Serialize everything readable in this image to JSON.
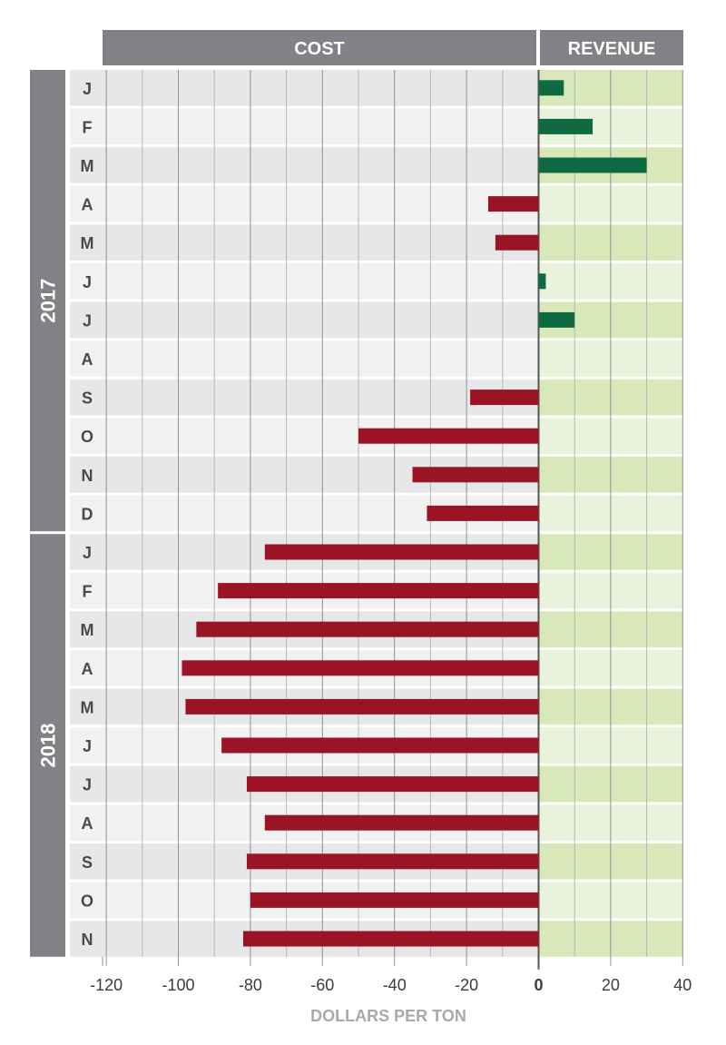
{
  "colors": {
    "header": "#808285",
    "cost_bar": "#9b1426",
    "revenue_bar": "#0f6a43",
    "cost_row_dark": "#e6e7e8",
    "cost_row_light": "#f1f1f2",
    "rev_row_dark": "#d8e8b9",
    "rev_row_light": "#e9f2db"
  },
  "chart_data": {
    "type": "bar",
    "orientation": "horizontal",
    "title": "",
    "headers": {
      "cost": "COST",
      "revenue": "REVENUE"
    },
    "xlabel": "DOLLARS PER TON",
    "ylabel": "",
    "xlim": [
      -120,
      40
    ],
    "xticks": [
      -120,
      -100,
      -80,
      -60,
      -40,
      -20,
      0,
      20,
      40
    ],
    "xtick_labels": [
      "-120",
      "-100",
      "-80",
      "-60",
      "-40",
      "-20",
      "0",
      "20",
      "40"
    ],
    "groups": [
      {
        "label": "2017",
        "count": 12
      },
      {
        "label": "2018",
        "count": 11
      }
    ],
    "categories": [
      "J",
      "F",
      "M",
      "A",
      "M",
      "J",
      "J",
      "A",
      "S",
      "O",
      "N",
      "D",
      "J",
      "F",
      "M",
      "A",
      "M",
      "J",
      "J",
      "A",
      "S",
      "O",
      "N"
    ],
    "values": [
      7,
      15,
      30,
      -14,
      -12,
      2,
      10,
      0,
      -19,
      -50,
      -35,
      -31,
      -76,
      -89,
      -95,
      -99,
      -98,
      -88,
      -81,
      -76,
      -81,
      -80,
      -82
    ]
  }
}
